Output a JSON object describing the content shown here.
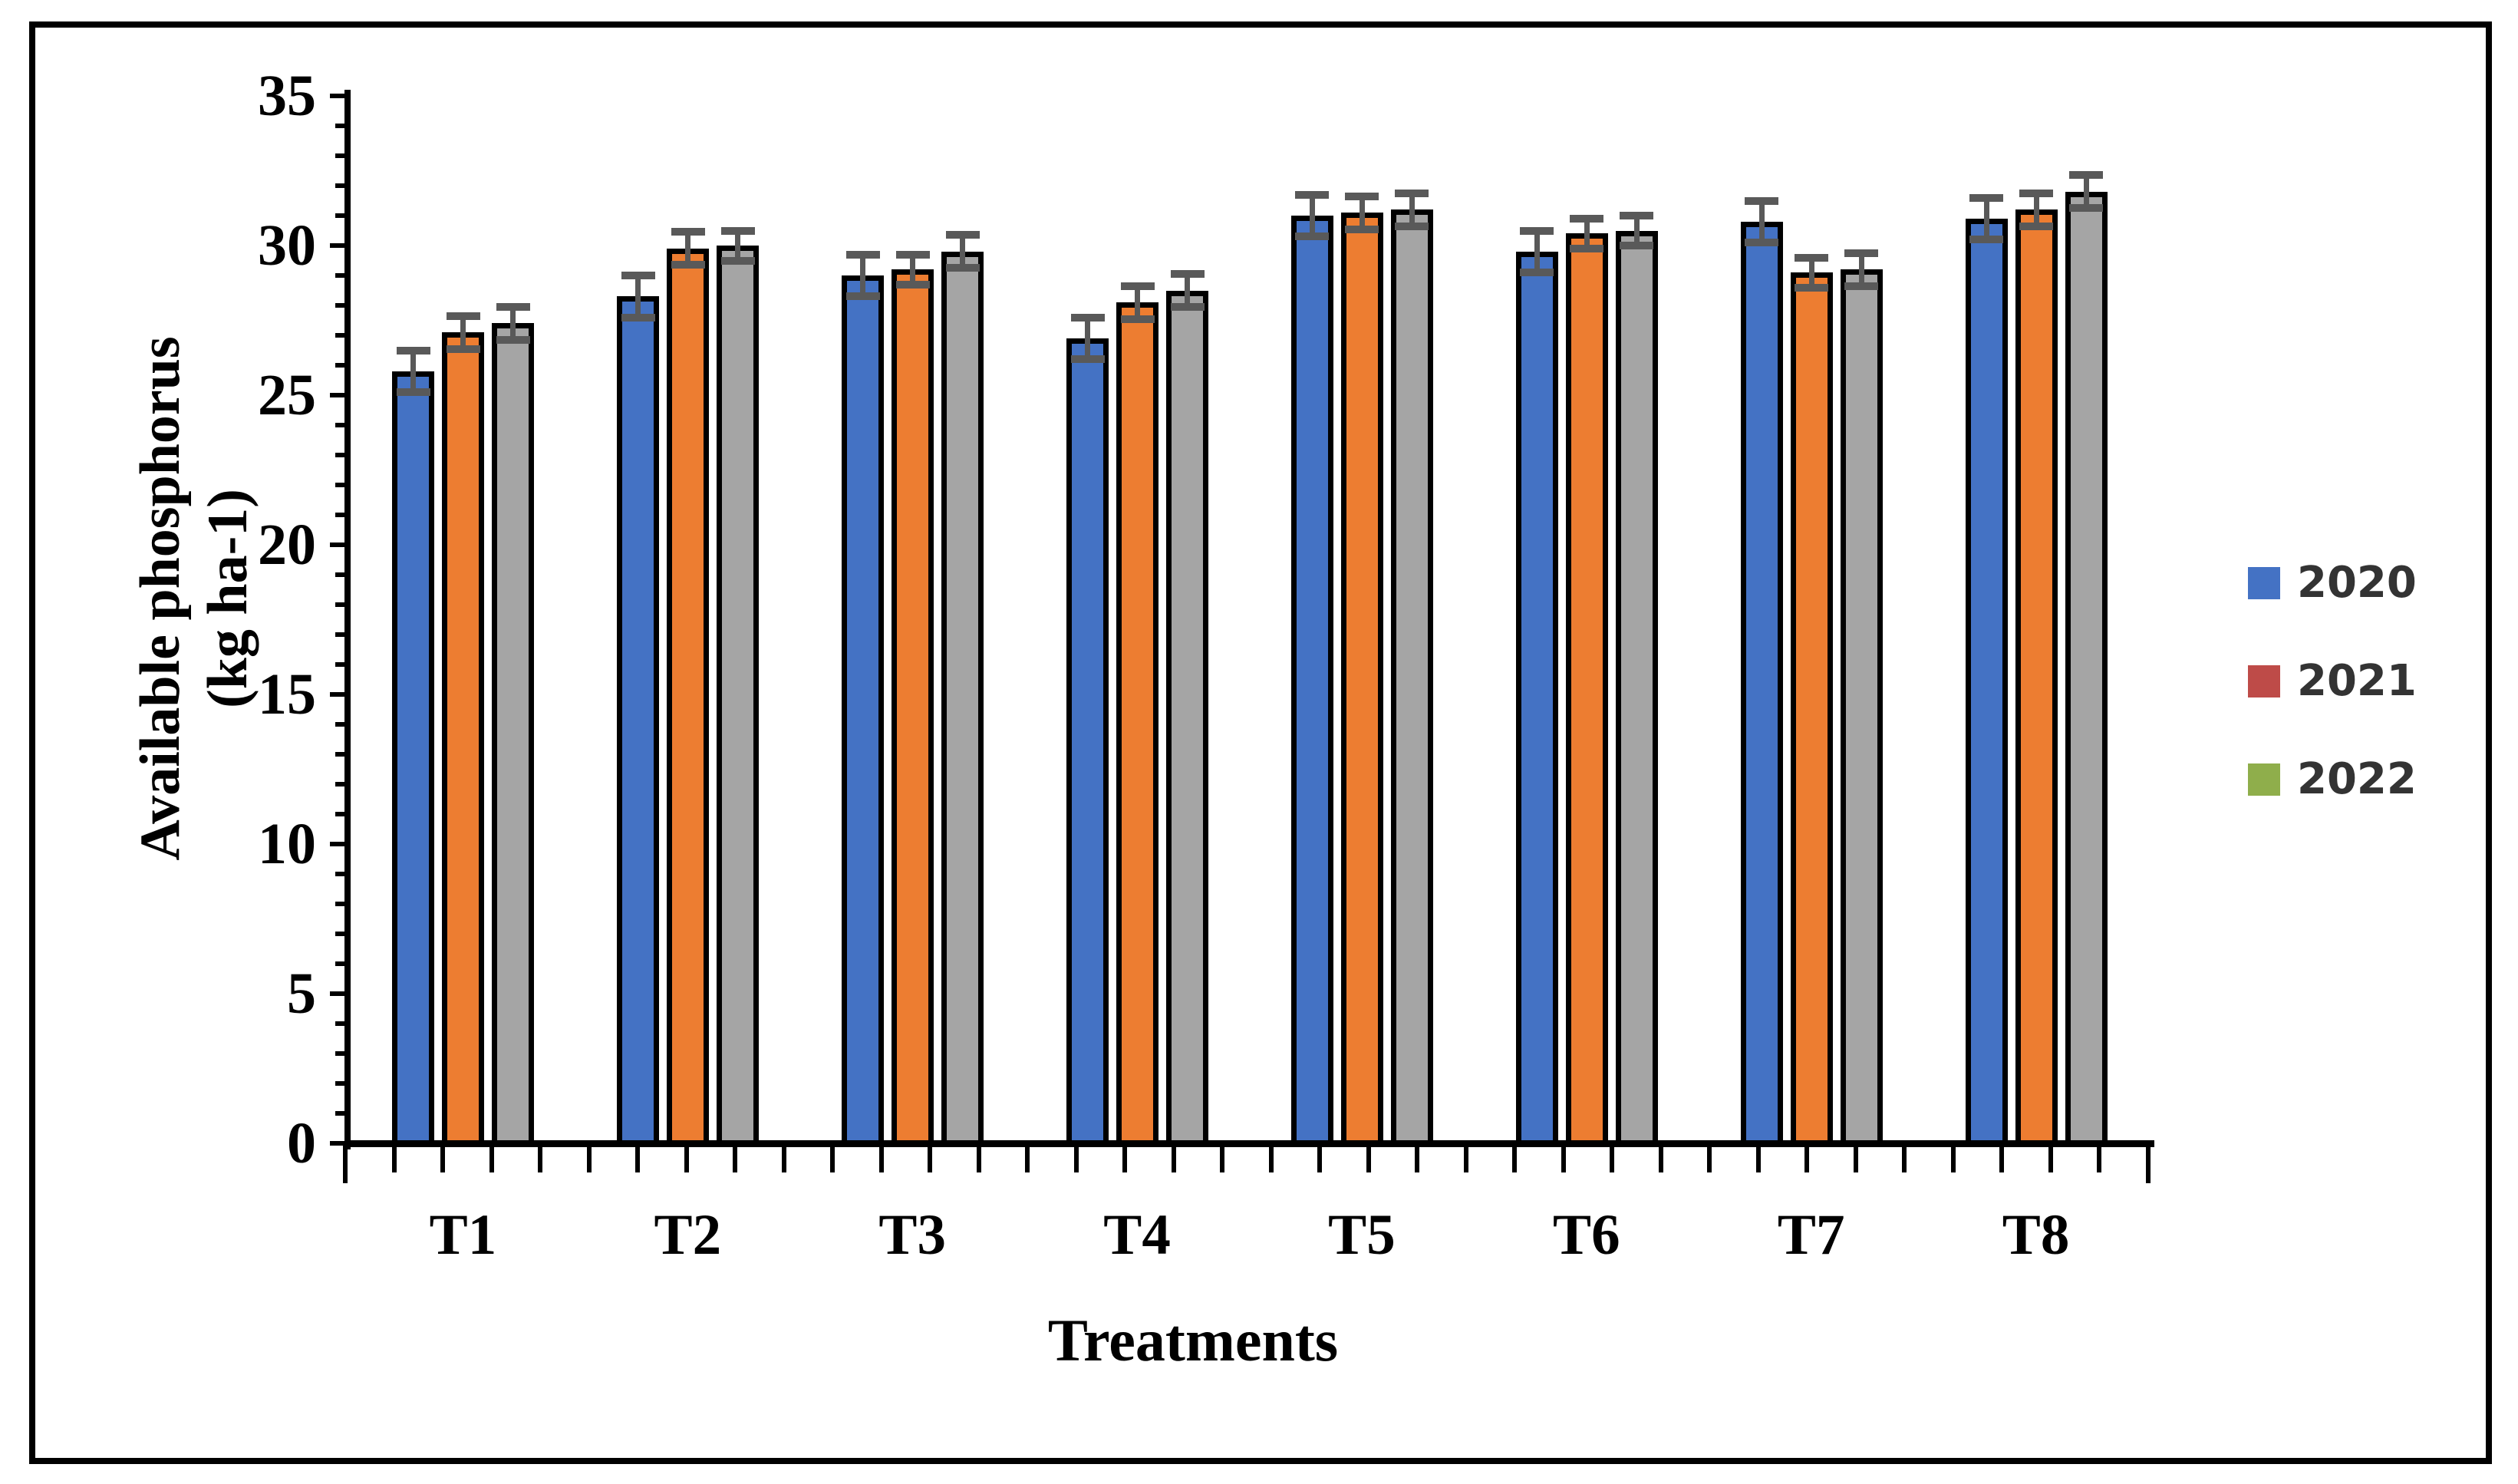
{
  "chart_data": {
    "type": "bar",
    "title": "",
    "categories": [
      "T1",
      "T2",
      "T3",
      "T4",
      "T5",
      "T6",
      "T7",
      "T8"
    ],
    "series": [
      {
        "name": "2020",
        "bar_color": "#4472C4",
        "legend_color": "#4472C4",
        "values": [
          25.8,
          28.3,
          29.0,
          26.9,
          31.0,
          29.8,
          30.8,
          30.9
        ],
        "errors": [
          0.7,
          0.7,
          0.7,
          0.7,
          0.7,
          0.7,
          0.7,
          0.7
        ]
      },
      {
        "name": "2021",
        "bar_color": "#ED7D31",
        "legend_color": "#BE4B48",
        "values": [
          27.1,
          29.9,
          29.2,
          28.1,
          31.1,
          30.4,
          29.1,
          31.2
        ],
        "errors": [
          0.55,
          0.55,
          0.5,
          0.55,
          0.55,
          0.5,
          0.5,
          0.55
        ]
      },
      {
        "name": "2022",
        "bar_color": "#A5A5A5",
        "legend_color": "#8FAE4B",
        "values": [
          27.4,
          30.0,
          29.8,
          28.5,
          31.2,
          30.5,
          29.2,
          31.8
        ],
        "errors": [
          0.55,
          0.5,
          0.55,
          0.55,
          0.55,
          0.5,
          0.55,
          0.55
        ]
      }
    ],
    "xlabel": "Treatments",
    "ylabel_lines": [
      "Available phosphorus",
      "(kg ha-1)"
    ],
    "y_tick_labels": [
      "0",
      "5",
      "10",
      "15",
      "20",
      "25",
      "30",
      "35"
    ],
    "ylim": [
      0,
      35
    ],
    "y_major_step": 5,
    "y_minor_step": 1,
    "grid": false,
    "legend_position": "right",
    "bar_border_color": "#000000",
    "error_bar_color": "#595959"
  }
}
